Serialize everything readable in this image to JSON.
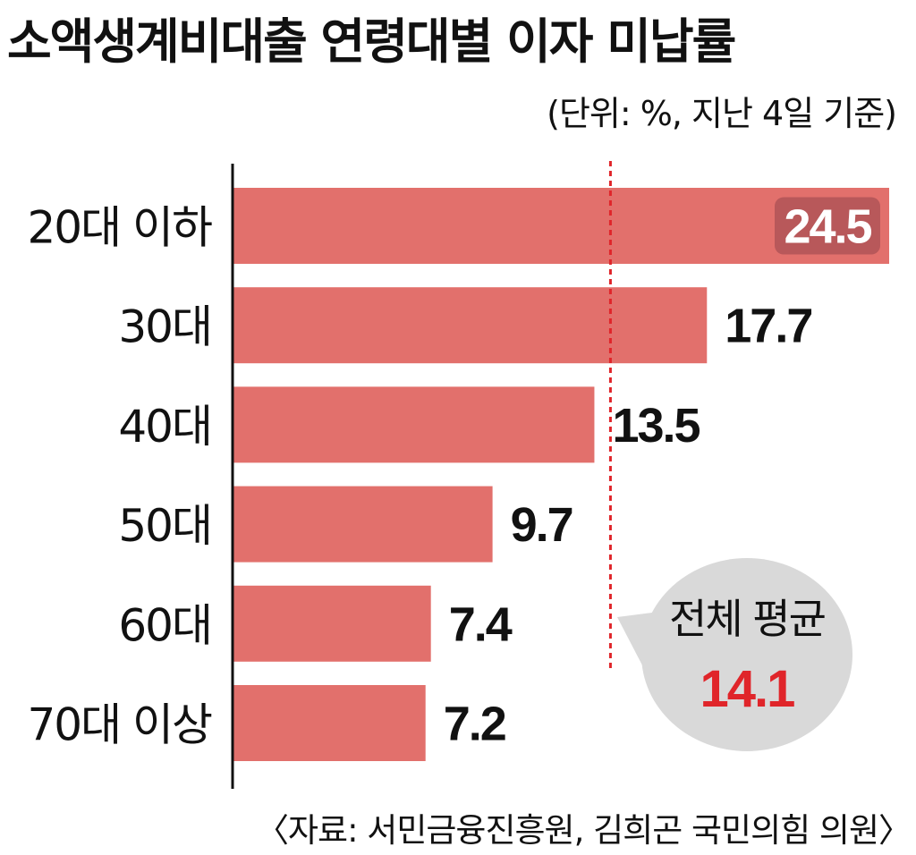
{
  "header": {
    "title": "소액생계비대출 연령대별 이자 미납률",
    "unit": "(단위: %, 지난 4일 기준)"
  },
  "footer": {
    "source": "〈자료: 서민금융진흥원, 김희곤 국민의힘 의원〉"
  },
  "colors": {
    "bar": "#e2706c",
    "average_line": "#e0252a",
    "average_value": "#e0252a",
    "callout": "#d9d9d9",
    "highlight_label_bg": "#b8585a"
  },
  "chart_data": {
    "type": "bar",
    "orientation": "horizontal",
    "categories": [
      "20대 이하",
      "30대",
      "40대",
      "50대",
      "60대",
      "70대 이상"
    ],
    "values": [
      24.5,
      17.7,
      13.5,
      9.7,
      7.4,
      7.2
    ],
    "value_labels": [
      "24.5",
      "17.7",
      "13.5",
      "9.7",
      "7.4",
      "7.2"
    ],
    "xlim": [
      0,
      24.5
    ],
    "grid": false,
    "reference_line": {
      "value": 14.1,
      "label": "전체 평균",
      "value_label": "14.1",
      "style": "dashed"
    }
  }
}
